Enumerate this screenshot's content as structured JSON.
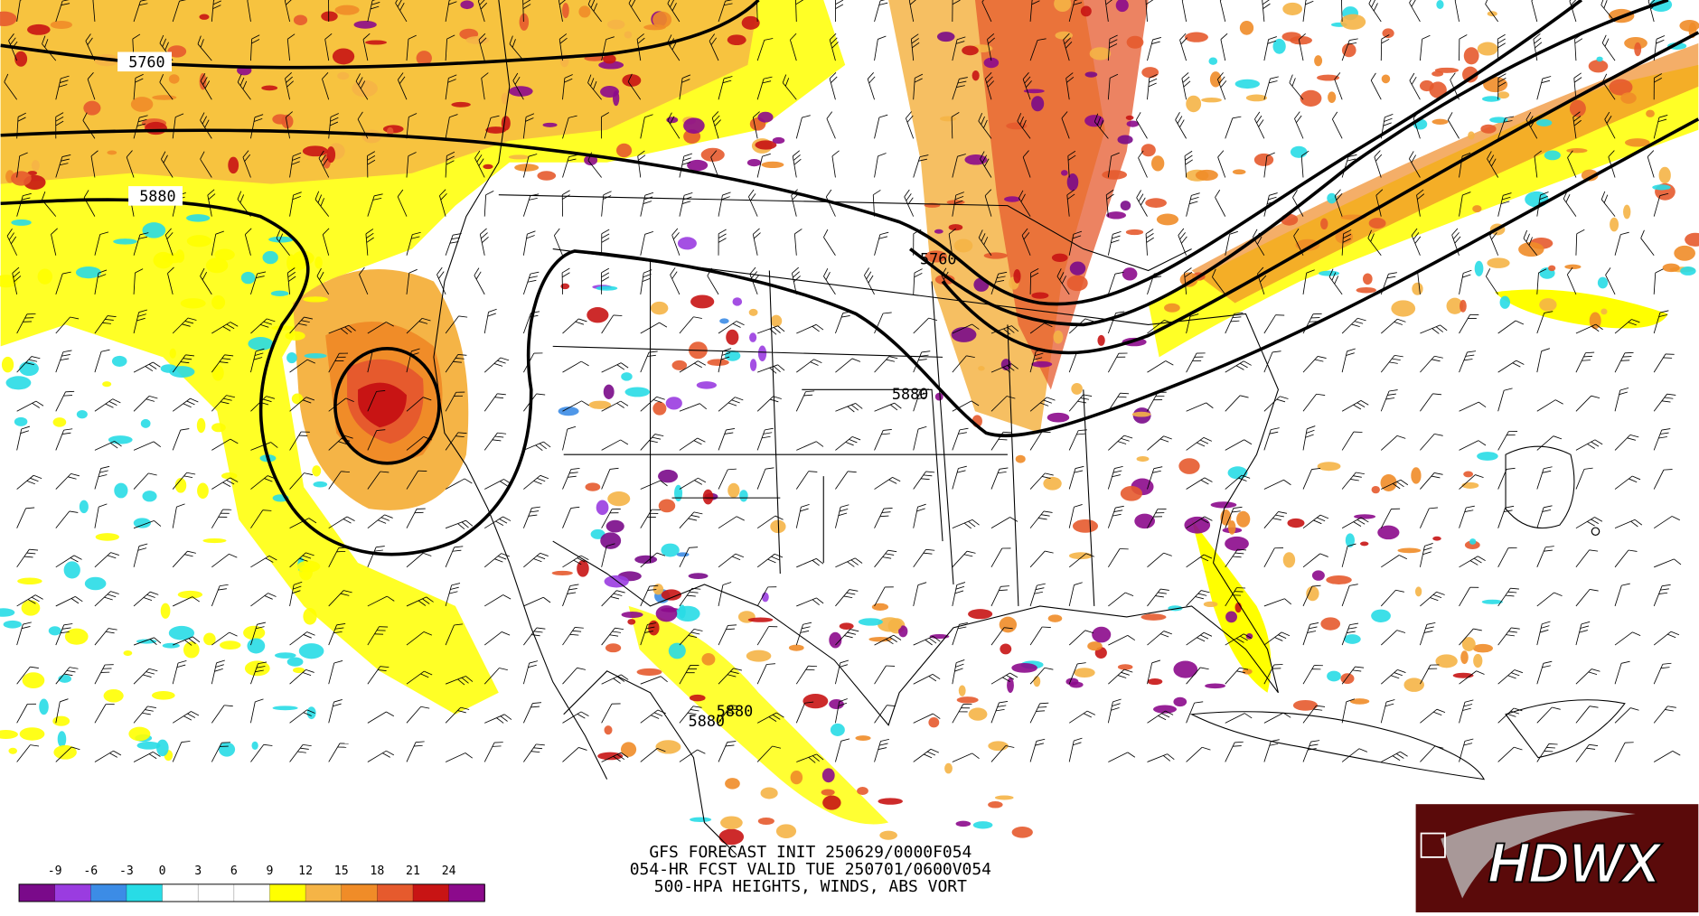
{
  "map": {
    "contour_labels": [
      "5760",
      "5880",
      "5760",
      "5880",
      "5880",
      "5880"
    ],
    "caption": [
      "GFS FORECAST INIT 250629/0000F054",
      "054-HR FCST VALID TUE 250701/0600V054",
      "500-HPA HEIGHTS, WINDS, ABS VORT"
    ]
  },
  "colorbar": {
    "ticks": [
      -9,
      -6,
      -3,
      0,
      3,
      6,
      9,
      12,
      15,
      18,
      21,
      24
    ],
    "colors": [
      "#7a0a8a",
      "#9a3ce0",
      "#3c8ce6",
      "#28dce6",
      "#ffffff",
      "#ffffff",
      "#ffffff",
      "#ffff00",
      "#f5b446",
      "#f08c28",
      "#e65a2d",
      "#c81414",
      "#8c0a8c"
    ]
  },
  "logo": {
    "text": "HDWX"
  }
}
